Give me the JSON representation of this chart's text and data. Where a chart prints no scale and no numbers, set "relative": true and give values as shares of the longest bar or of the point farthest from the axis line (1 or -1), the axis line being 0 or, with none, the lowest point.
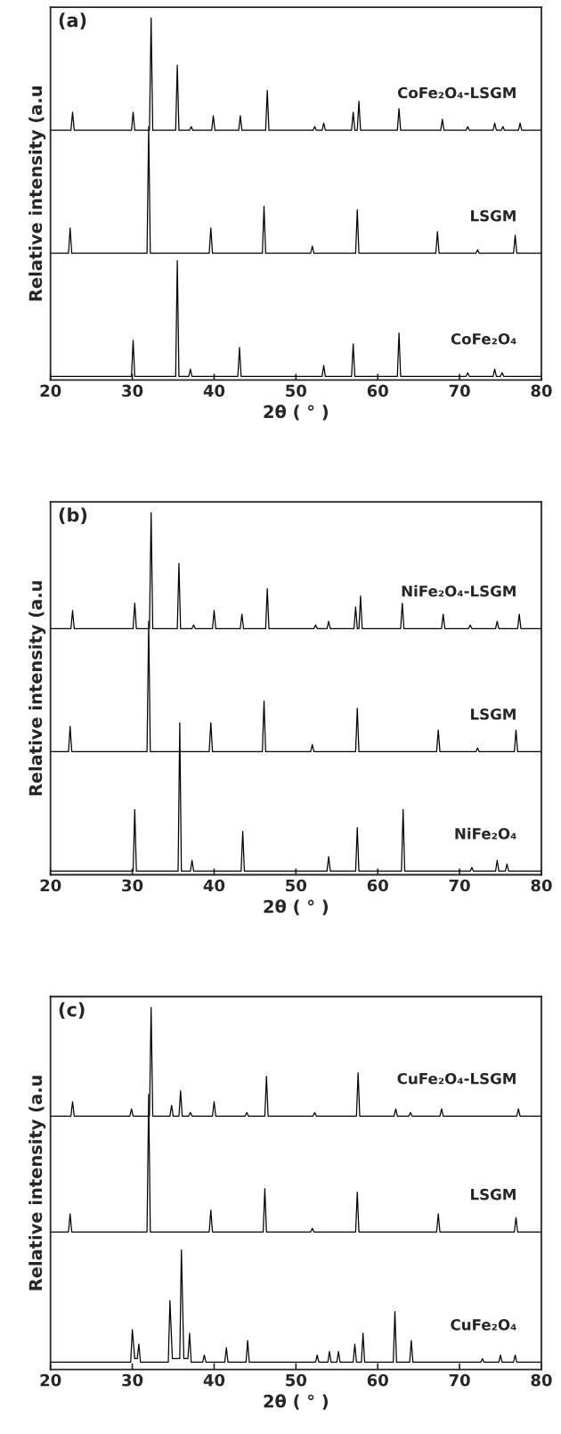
{
  "chart_data": [
    {
      "type": "line",
      "title": "(a)",
      "xlabel": "2θ ( ° )",
      "ylabel": "Relative intensity (a.u",
      "xlim": [
        20,
        80
      ],
      "xticks": [
        20,
        30,
        40,
        50,
        60,
        70,
        80
      ],
      "relative": true,
      "tick_labels": "x",
      "grid": false,
      "legend": false,
      "series": [
        {
          "name": "CoFe₂O₄-LSGM",
          "color": "#000000",
          "x": [
            20,
            22.5,
            22.7,
            22.9,
            29.9,
            30.1,
            30.3,
            32.1,
            32.3,
            32.5,
            35.3,
            35.5,
            35.7,
            37.0,
            37.2,
            37.4,
            39.7,
            39.9,
            40.1,
            43.0,
            43.2,
            43.4,
            46.3,
            46.5,
            46.7,
            52.1,
            52.3,
            52.5,
            53.2,
            53.4,
            53.6,
            56.8,
            57.0,
            57.2,
            57.5,
            57.7,
            57.9,
            62.4,
            62.6,
            62.8,
            67.7,
            67.9,
            68.1,
            70.8,
            71.0,
            71.2,
            74.1,
            74.3,
            74.5,
            75.1,
            75.3,
            75.5,
            77.2,
            77.4,
            77.6,
            80
          ],
          "values": [
            0.69,
            0.69,
            0.74,
            0.69,
            0.69,
            0.74,
            0.69,
            0.69,
            1.0,
            0.69,
            0.69,
            0.87,
            0.69,
            0.69,
            0.7,
            0.69,
            0.69,
            0.73,
            0.69,
            0.69,
            0.73,
            0.69,
            0.69,
            0.8,
            0.69,
            0.69,
            0.7,
            0.69,
            0.69,
            0.71,
            0.69,
            0.69,
            0.74,
            0.69,
            0.69,
            0.77,
            0.69,
            0.69,
            0.75,
            0.69,
            0.69,
            0.72,
            0.69,
            0.69,
            0.7,
            0.69,
            0.69,
            0.71,
            0.69,
            0.69,
            0.7,
            0.69,
            0.69,
            0.71,
            0.69,
            0.69
          ]
        },
        {
          "name": "LSGM",
          "color": "#000000",
          "x": [
            20,
            22.2,
            22.4,
            22.6,
            31.8,
            32.0,
            32.2,
            39.4,
            39.6,
            39.8,
            45.9,
            46.1,
            46.3,
            51.8,
            52.0,
            52.2,
            57.3,
            57.5,
            57.7,
            67.1,
            67.3,
            67.5,
            72.0,
            72.2,
            72.4,
            76.6,
            76.8,
            77.0,
            80
          ],
          "values": [
            0.35,
            0.35,
            0.42,
            0.35,
            0.35,
            0.7,
            0.35,
            0.35,
            0.42,
            0.35,
            0.35,
            0.48,
            0.35,
            0.35,
            0.37,
            0.35,
            0.35,
            0.47,
            0.35,
            0.35,
            0.41,
            0.35,
            0.35,
            0.36,
            0.35,
            0.35,
            0.4,
            0.35,
            0.35
          ]
        },
        {
          "name": "CoFe₂O₄",
          "color": "#000000",
          "x": [
            20,
            29.9,
            30.1,
            30.3,
            35.3,
            35.5,
            35.7,
            36.9,
            37.1,
            37.3,
            42.9,
            43.1,
            43.3,
            53.2,
            53.4,
            53.6,
            56.8,
            57.0,
            57.2,
            62.4,
            62.6,
            62.8,
            70.8,
            71.0,
            71.2,
            74.1,
            74.3,
            74.5,
            75.0,
            75.2,
            75.4,
            80
          ],
          "values": [
            0.01,
            0.01,
            0.11,
            0.01,
            0.01,
            0.33,
            0.01,
            0.01,
            0.03,
            0.01,
            0.01,
            0.09,
            0.01,
            0.01,
            0.04,
            0.01,
            0.01,
            0.1,
            0.01,
            0.01,
            0.13,
            0.01,
            0.01,
            0.02,
            0.01,
            0.01,
            0.03,
            0.01,
            0.01,
            0.02,
            0.01,
            0.01
          ]
        }
      ]
    },
    {
      "type": "line",
      "title": "(b)",
      "xlabel": "2θ ( ° )",
      "ylabel": "Relative intensity (a.u",
      "xlim": [
        20,
        80
      ],
      "xticks": [
        20,
        30,
        40,
        50,
        60,
        70,
        80
      ],
      "relative": true,
      "tick_labels": "x",
      "grid": false,
      "legend": false,
      "series": [
        {
          "name": "NiFe₂O₄-LSGM",
          "color": "#000000",
          "x": [
            20,
            22.5,
            22.7,
            22.9,
            30.1,
            30.3,
            30.5,
            32.1,
            32.3,
            32.5,
            35.5,
            35.7,
            35.9,
            37.3,
            37.5,
            37.7,
            39.8,
            40.0,
            40.2,
            43.2,
            43.4,
            43.6,
            46.3,
            46.5,
            46.7,
            52.2,
            52.4,
            52.6,
            53.8,
            54.0,
            54.2,
            57.1,
            57.3,
            57.5,
            57.7,
            57.9,
            58.1,
            62.8,
            63.0,
            63.2,
            67.8,
            68.0,
            68.2,
            71.1,
            71.3,
            71.5,
            74.4,
            74.6,
            74.8,
            77.1,
            77.3,
            77.5,
            80
          ],
          "values": [
            0.68,
            0.68,
            0.73,
            0.68,
            0.68,
            0.75,
            0.68,
            0.68,
            1.0,
            0.68,
            0.68,
            0.86,
            0.68,
            0.68,
            0.69,
            0.68,
            0.68,
            0.73,
            0.68,
            0.68,
            0.72,
            0.68,
            0.68,
            0.79,
            0.68,
            0.68,
            0.69,
            0.68,
            0.68,
            0.7,
            0.68,
            0.68,
            0.74,
            0.68,
            0.68,
            0.77,
            0.68,
            0.68,
            0.75,
            0.68,
            0.68,
            0.72,
            0.68,
            0.68,
            0.69,
            0.68,
            0.68,
            0.7,
            0.68,
            0.68,
            0.72,
            0.68,
            0.68
          ]
        },
        {
          "name": "LSGM",
          "color": "#000000",
          "x": [
            20,
            22.2,
            22.4,
            22.6,
            31.8,
            32.0,
            32.2,
            39.4,
            39.6,
            39.8,
            45.9,
            46.1,
            46.3,
            51.8,
            52.0,
            52.2,
            57.3,
            57.5,
            57.7,
            67.2,
            67.4,
            67.6,
            72.0,
            72.2,
            72.4,
            76.7,
            76.9,
            77.1,
            80
          ],
          "values": [
            0.34,
            0.34,
            0.41,
            0.34,
            0.34,
            0.7,
            0.34,
            0.34,
            0.42,
            0.34,
            0.34,
            0.48,
            0.34,
            0.34,
            0.36,
            0.34,
            0.34,
            0.46,
            0.34,
            0.34,
            0.4,
            0.34,
            0.34,
            0.35,
            0.34,
            0.34,
            0.4,
            0.34,
            0.34
          ]
        },
        {
          "name": "NiFe₂O₄",
          "color": "#000000",
          "x": [
            20,
            30.1,
            30.3,
            30.5,
            35.6,
            35.8,
            36.0,
            37.1,
            37.3,
            37.5,
            43.3,
            43.5,
            43.7,
            53.8,
            54.0,
            54.2,
            57.3,
            57.5,
            57.7,
            62.9,
            63.1,
            63.3,
            71.3,
            71.5,
            71.7,
            74.4,
            74.6,
            74.8,
            75.6,
            75.8,
            76.0,
            80
          ],
          "values": [
            0.01,
            0.01,
            0.18,
            0.01,
            0.01,
            0.42,
            0.01,
            0.01,
            0.04,
            0.01,
            0.01,
            0.12,
            0.01,
            0.01,
            0.05,
            0.01,
            0.01,
            0.13,
            0.01,
            0.01,
            0.18,
            0.01,
            0.01,
            0.02,
            0.01,
            0.01,
            0.04,
            0.01,
            0.01,
            0.03,
            0.01,
            0.01
          ]
        }
      ]
    },
    {
      "type": "line",
      "title": "(c)",
      "xlabel": "2θ ( ° )",
      "ylabel": "Relative intensity (a.u",
      "xlim": [
        20,
        80
      ],
      "xticks": [
        20,
        30,
        40,
        50,
        60,
        70,
        80
      ],
      "relative": true,
      "tick_labels": "x",
      "grid": false,
      "legend": false,
      "series": [
        {
          "name": "CuFe₂O₄-LSGM",
          "color": "#000000",
          "x": [
            20,
            22.5,
            22.7,
            22.9,
            29.7,
            29.9,
            30.1,
            32.1,
            32.3,
            32.5,
            34.6,
            34.8,
            35.0,
            35.7,
            35.9,
            36.1,
            36.9,
            37.1,
            37.3,
            39.8,
            40.0,
            40.2,
            43.8,
            44.0,
            44.2,
            46.2,
            46.4,
            46.6,
            52.1,
            52.3,
            52.5,
            57.4,
            57.6,
            57.8,
            62.0,
            62.2,
            62.4,
            63.8,
            64.0,
            64.2,
            67.6,
            67.8,
            68.0,
            77.0,
            77.2,
            77.4,
            80
          ],
          "values": [
            0.7,
            0.7,
            0.74,
            0.7,
            0.7,
            0.72,
            0.7,
            0.7,
            1.0,
            0.7,
            0.7,
            0.73,
            0.7,
            0.7,
            0.77,
            0.7,
            0.7,
            0.71,
            0.7,
            0.7,
            0.74,
            0.7,
            0.7,
            0.71,
            0.7,
            0.7,
            0.81,
            0.7,
            0.7,
            0.71,
            0.7,
            0.7,
            0.82,
            0.7,
            0.7,
            0.72,
            0.7,
            0.7,
            0.71,
            0.7,
            0.7,
            0.72,
            0.7,
            0.7,
            0.72,
            0.7,
            0.7
          ]
        },
        {
          "name": "LSGM",
          "color": "#000000",
          "x": [
            20,
            22.2,
            22.4,
            22.6,
            31.8,
            32.0,
            32.2,
            39.4,
            39.6,
            39.8,
            46.0,
            46.2,
            46.4,
            51.8,
            52.0,
            52.2,
            57.3,
            57.5,
            57.7,
            67.2,
            67.4,
            67.6,
            72.0,
            72.2,
            72.4,
            76.7,
            76.9,
            77.1,
            80
          ],
          "values": [
            0.38,
            0.38,
            0.43,
            0.38,
            0.38,
            0.76,
            0.38,
            0.38,
            0.44,
            0.38,
            0.38,
            0.5,
            0.38,
            0.38,
            0.39,
            0.38,
            0.38,
            0.49,
            0.38,
            0.38,
            0.43,
            0.38,
            0.38,
            0.38,
            0.38,
            0.38,
            0.42,
            0.38,
            0.38
          ]
        },
        {
          "name": "CuFe₂O₄",
          "color": "#000000",
          "x": [
            20,
            29.8,
            30.0,
            30.3,
            30.6,
            30.8,
            31.0,
            34.4,
            34.6,
            34.9,
            35.8,
            36.0,
            36.3,
            36.8,
            37.0,
            37.2,
            38.6,
            38.8,
            39.0,
            41.3,
            41.5,
            41.7,
            43.9,
            44.1,
            44.3,
            52.4,
            52.6,
            52.8,
            53.9,
            54.1,
            54.3,
            55.0,
            55.2,
            55.4,
            57.0,
            57.2,
            57.4,
            58.0,
            58.2,
            58.4,
            61.9,
            62.1,
            62.3,
            63.9,
            64.1,
            64.3,
            72.6,
            72.8,
            73.0,
            74.8,
            75.0,
            75.2,
            76.6,
            76.8,
            77.0,
            80
          ],
          "values": [
            0.02,
            0.02,
            0.11,
            0.03,
            0.03,
            0.07,
            0.02,
            0.02,
            0.19,
            0.03,
            0.03,
            0.33,
            0.03,
            0.03,
            0.1,
            0.02,
            0.02,
            0.04,
            0.02,
            0.02,
            0.06,
            0.02,
            0.02,
            0.08,
            0.02,
            0.02,
            0.04,
            0.02,
            0.02,
            0.05,
            0.02,
            0.02,
            0.05,
            0.02,
            0.02,
            0.07,
            0.02,
            0.02,
            0.1,
            0.02,
            0.02,
            0.16,
            0.02,
            0.02,
            0.08,
            0.02,
            0.02,
            0.03,
            0.02,
            0.02,
            0.04,
            0.02,
            0.02,
            0.04,
            0.02,
            0.02
          ]
        }
      ]
    }
  ]
}
